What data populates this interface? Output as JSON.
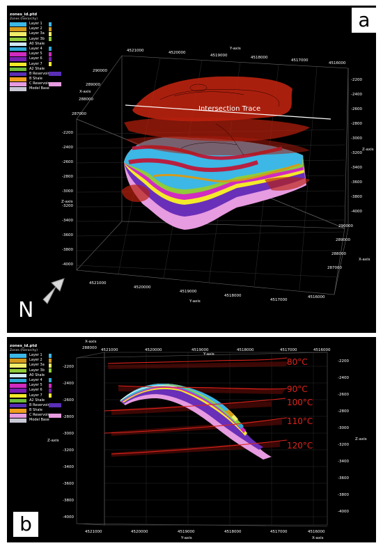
{
  "legend": {
    "title": "zones_id.ptd",
    "subtitle": "Zones (hierarchy)",
    "items": [
      {
        "label": "Layer 1",
        "color": "#3cb7e6",
        "marker": "#3cb7e6"
      },
      {
        "label": "Layer 2",
        "color": "#d49a1c",
        "marker": "#d49a1c"
      },
      {
        "label": "Layer 3a",
        "color": "#f2ee6a",
        "marker": "#f2ee6a"
      },
      {
        "label": "Layer 3b",
        "color": "#8fcb3a",
        "marker": "#8fcb3a"
      },
      {
        "label": "A0 Shale",
        "color": "#cfe8f3",
        "marker": ""
      },
      {
        "label": "Layer 4",
        "color": "#2fa8d6",
        "marker": "#2fa8d6"
      },
      {
        "label": "Layer 5",
        "color": "#d12bc0",
        "marker": "#d12bc0"
      },
      {
        "label": "Layer 6",
        "color": "#7a1fb3",
        "marker": "#7a1fb3"
      },
      {
        "label": "Layer 7",
        "color": "#f4ea2a",
        "marker": "#f4ea2a"
      },
      {
        "label": "A2 Shale",
        "color": "#6dbb3a",
        "marker": ""
      },
      {
        "label": "B Reservoir",
        "color": "#5a2fb8",
        "marker": "#5a2fb8"
      },
      {
        "label": "B Shale",
        "color": "#f0a01e",
        "marker": ""
      },
      {
        "label": "C Reservoir",
        "color": "#e79be0",
        "marker": "#e79be0"
      },
      {
        "label": "Model Base",
        "color": "#c9c9d6",
        "marker": ""
      }
    ]
  },
  "panel_a": {
    "label": "a",
    "intersection_trace": "Intersection Trace",
    "x_axis_label": "X-axis",
    "y_axis_label": "Y-axis",
    "z_axis_label": "Z-axis",
    "top_ticks": [
      "4521000",
      "4520000",
      "4519000",
      "4518000",
      "4517000",
      "4516000"
    ],
    "bottom_ticks": [
      "4521000",
      "4520000",
      "4519000",
      "4518000",
      "4517000",
      "4516000"
    ],
    "x_ticks": [
      "290000",
      "289000",
      "288000",
      "287000"
    ],
    "x_ticks_right": [
      "290000",
      "289000",
      "288000",
      "287000"
    ],
    "z_ticks_left": [
      "-2200",
      "-2400",
      "-2600",
      "-2800",
      "-3000",
      "-3200",
      "-3400",
      "-3600",
      "-3800",
      "-4000"
    ],
    "z_ticks_right": [
      "-2200",
      "-2400",
      "-2600",
      "-2800",
      "-3000",
      "-3200",
      "-3400",
      "-3600",
      "-3800",
      "-4000"
    ],
    "north": "N"
  },
  "panel_b": {
    "label": "b",
    "x_axis_label": "X-axis",
    "y_axis_label": "Y-axis",
    "z_axis_label": "Z-axis",
    "top_x_value": "288000",
    "top_ticks": [
      "4521000",
      "4520000",
      "4519000",
      "4518000",
      "4517000",
      "4516000"
    ],
    "bottom_ticks": [
      "4521000",
      "4520000",
      "4519000",
      "4518000",
      "4517000",
      "4516000"
    ],
    "z_ticks_left": [
      "-2200",
      "-2400",
      "-2600",
      "-2800",
      "-3000",
      "-3200",
      "-3400",
      "-3600",
      "-3800",
      "-4000"
    ],
    "z_ticks_right": [
      "-2200",
      "-2400",
      "-2600",
      "-2800",
      "-3000",
      "-3200",
      "-3400",
      "-3600",
      "-3800",
      "-4000"
    ],
    "isotherms": [
      "80°C",
      "90°C",
      "100°C",
      "110°C",
      "120°C"
    ],
    "isotherm_color": "#e0231c"
  }
}
